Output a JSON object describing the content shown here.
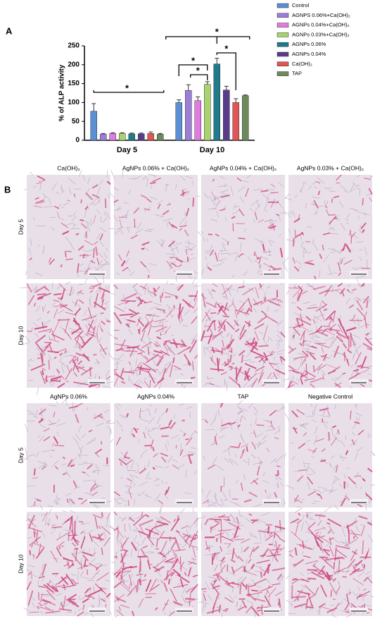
{
  "panel_labels": [
    "A",
    "B"
  ],
  "chart_data": {
    "type": "bar",
    "y_label": "% of ALP activity",
    "categories": [
      "Day 5",
      "Day 10"
    ],
    "ylim": [
      0,
      250
    ],
    "yticks": [
      0,
      50,
      100,
      150,
      200,
      250
    ],
    "series": [
      {
        "name": "Control",
        "color": "#5b8fd4",
        "values": [
          77,
          100
        ],
        "errors": [
          20,
          7
        ]
      },
      {
        "name": "AGNPS 0.06%+Ca(OH)₂",
        "color": "#9b7fd6",
        "values": [
          16,
          132
        ],
        "errors": [
          2,
          15
        ]
      },
      {
        "name": "AGNPs 0.04%+Ca(OH)₂",
        "color": "#e07be0",
        "values": [
          18,
          105
        ],
        "errors": [
          2,
          10
        ]
      },
      {
        "name": "AGNPs 0.03%+Ca(OH)₂",
        "color": "#a8d46f",
        "values": [
          18,
          148
        ],
        "errors": [
          2,
          7
        ]
      },
      {
        "name": "AGNPs 0.06%",
        "color": "#1f7a8c",
        "values": [
          17,
          202
        ],
        "errors": [
          2,
          15
        ]
      },
      {
        "name": "AGNPs 0.04%",
        "color": "#5a3d8a",
        "values": [
          17,
          133
        ],
        "errors": [
          2,
          10
        ]
      },
      {
        "name": "Ca(OH)₂",
        "color": "#e05555",
        "values": [
          18,
          100
        ],
        "errors": [
          4,
          10
        ]
      },
      {
        "name": "TAP",
        "color": "#6f8a5a",
        "values": [
          16,
          118
        ],
        "errors": [
          2,
          2
        ]
      }
    ],
    "annotations": [
      "*",
      "*",
      "*",
      "*",
      "*"
    ]
  },
  "micrographs": {
    "groups": [
      {
        "columns": [
          "Ca(OH)₂",
          "AgNPs 0.06% + Ca(OH)₂",
          "AgNPs 0.04% + Ca(OH)₂",
          "AgNPs 0.03% + Ca(OH)₂"
        ],
        "rows": [
          "Day 5",
          "Day 10"
        ]
      },
      {
        "columns": [
          "AgNPs 0.06%",
          "AgNPs 0.04%",
          "TAP",
          "Negative Control"
        ],
        "rows": [
          "Day 5",
          "Day 10"
        ]
      }
    ]
  }
}
